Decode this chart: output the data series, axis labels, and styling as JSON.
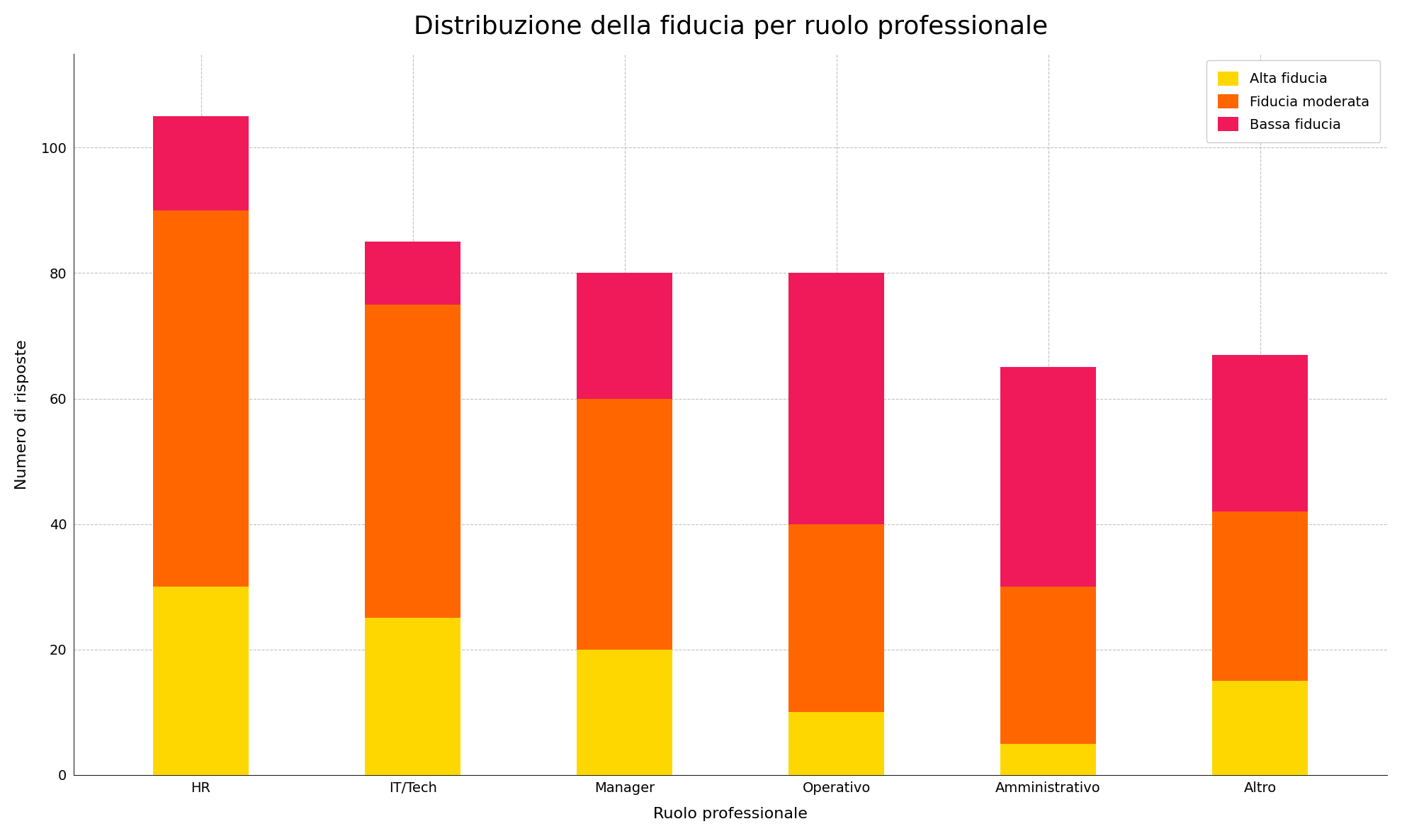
{
  "categories": [
    "HR",
    "IT/Tech",
    "Manager",
    "Operativo",
    "Amministrativo",
    "Altro"
  ],
  "alta_fiducia": [
    30,
    25,
    20,
    10,
    5,
    15
  ],
  "fiducia_moderata": [
    60,
    50,
    40,
    30,
    25,
    27
  ],
  "bassa_fiducia": [
    15,
    10,
    20,
    40,
    35,
    25
  ],
  "color_alta": "#FFD700",
  "color_moderata": "#FF6600",
  "color_bassa": "#F0195A",
  "title": "Distribuzione della fiducia per ruolo professionale",
  "xlabel": "Ruolo professionale",
  "ylabel": "Numero di risposte",
  "legend_alta": "Alta fiducia",
  "legend_moderata": "Fiducia moderata",
  "legend_bassa": "Bassa fiducia",
  "ylim": [
    0,
    115
  ],
  "background_color": "#FFFFFF",
  "grid_color": "#BBBBBB",
  "title_fontsize": 26,
  "label_fontsize": 16,
  "tick_fontsize": 14,
  "legend_fontsize": 14,
  "bar_width": 0.45
}
